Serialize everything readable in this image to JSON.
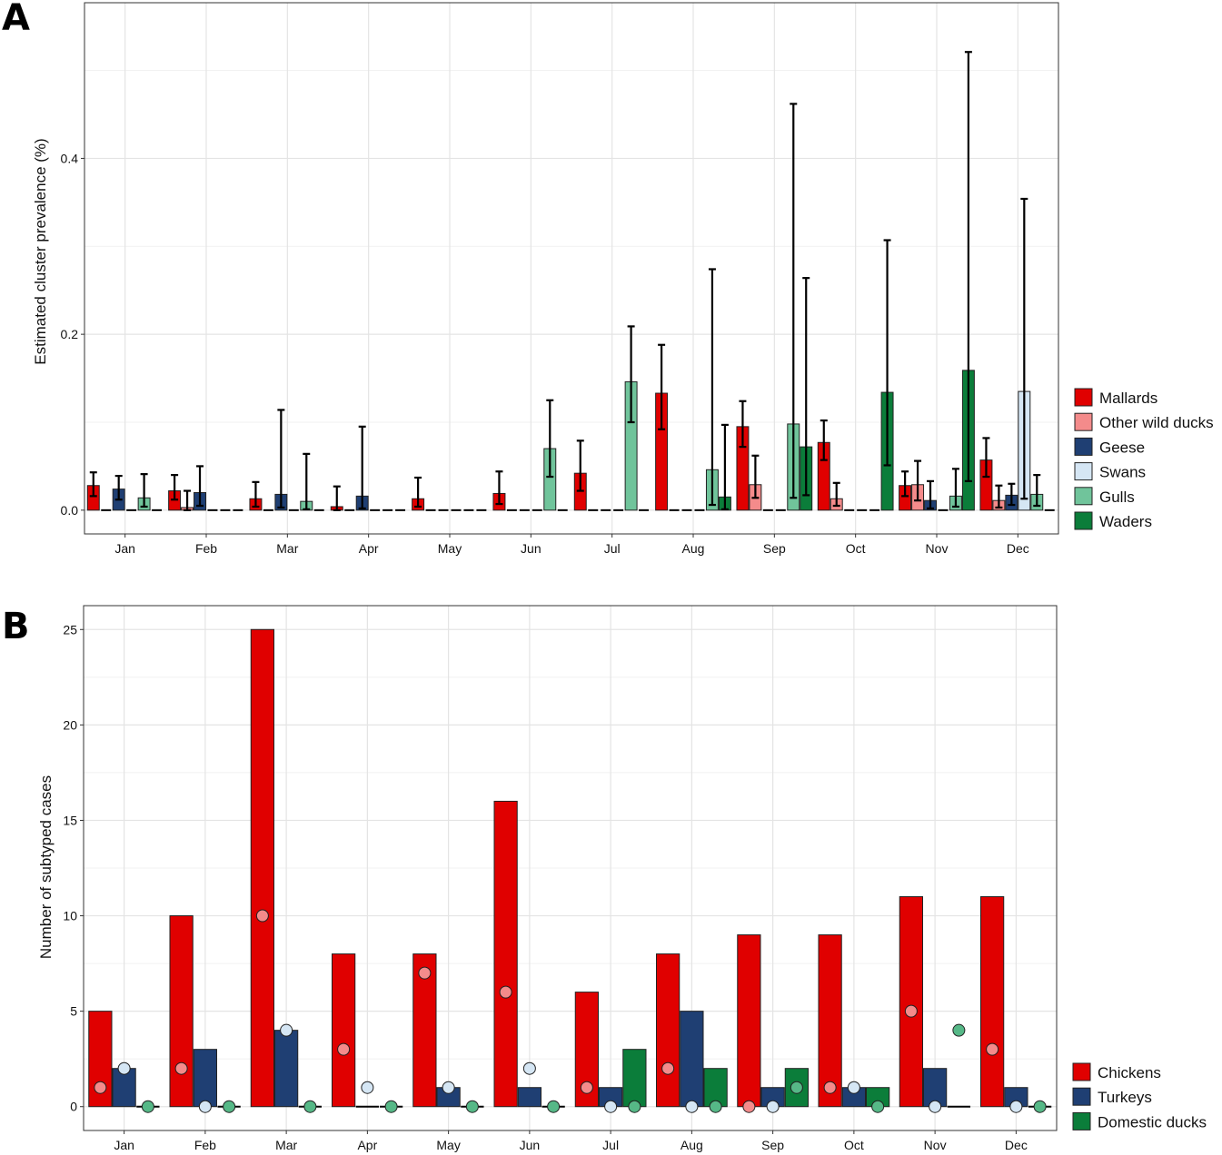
{
  "colors": {
    "mallards": "#e00000",
    "other_wild_ducks": "#f48b8b",
    "geese": "#1f3f73",
    "swans": "#d5e6f4",
    "gulls": "#70c49b",
    "waders": "#0b7d3a",
    "chickens": "#e00000",
    "turkeys": "#1f3f73",
    "domestic_ducks": "#0b7d3a",
    "point_chickens": "#f48b8b",
    "point_turkeys": "#d5e6f4",
    "point_ducks": "#56b887"
  },
  "panels": {
    "a": "A",
    "b": "B"
  },
  "chart_data": [
    {
      "type": "bar",
      "panel": "A",
      "title": "",
      "xlabel": "",
      "ylabel": "Estimated cluster prevalence (%)",
      "ylim": [
        -0.027,
        0.577
      ],
      "yticks": [
        0.0,
        0.2,
        0.4
      ],
      "ytick_labels": [
        "0.0",
        "0.2",
        "0.4"
      ],
      "categories": [
        "Jan",
        "Feb",
        "Mar",
        "Apr",
        "May",
        "Jun",
        "Jul",
        "Aug",
        "Sep",
        "Oct",
        "Nov",
        "Dec"
      ],
      "legend_position": "right",
      "series": [
        {
          "name": "Mallards",
          "color": "mallards",
          "values": [
            0.028,
            0.022,
            0.013,
            0.004,
            0.013,
            0.019,
            0.042,
            0.133,
            0.095,
            0.077,
            0.028,
            0.057
          ],
          "lower": [
            0.016,
            0.012,
            0.004,
            0.0,
            0.004,
            0.007,
            0.022,
            0.092,
            0.072,
            0.057,
            0.016,
            0.038
          ],
          "upper": [
            0.043,
            0.04,
            0.032,
            0.027,
            0.037,
            0.044,
            0.079,
            0.188,
            0.124,
            0.102,
            0.044,
            0.082
          ]
        },
        {
          "name": "Other wild ducks",
          "color": "other_wild_ducks",
          "values": [
            0.0,
            0.003,
            0.0,
            0.0,
            0.0,
            0.0,
            0.0,
            0.0,
            0.029,
            0.013,
            0.029,
            0.011
          ],
          "lower": [
            0.0,
            0.0,
            0.0,
            0.0,
            0.0,
            0.0,
            0.0,
            0.0,
            0.014,
            0.005,
            0.011,
            0.003
          ],
          "upper": [
            0.0,
            0.022,
            0.0,
            0.0,
            0.0,
            0.0,
            0.0,
            0.0,
            0.062,
            0.031,
            0.056,
            0.028
          ]
        },
        {
          "name": "Geese",
          "color": "geese",
          "values": [
            0.024,
            0.02,
            0.018,
            0.016,
            0.0,
            0.0,
            0.0,
            0.0,
            0.0,
            0.0,
            0.011,
            0.017
          ],
          "lower": [
            0.012,
            0.005,
            0.003,
            0.002,
            0.0,
            0.0,
            0.0,
            0.0,
            0.0,
            0.0,
            0.002,
            0.006
          ],
          "upper": [
            0.039,
            0.05,
            0.114,
            0.095,
            0.0,
            0.0,
            0.0,
            0.0,
            0.0,
            0.0,
            0.033,
            0.03
          ]
        },
        {
          "name": "Swans",
          "color": "swans",
          "values": [
            0.0,
            0.0,
            0.0,
            0.0,
            0.0,
            0.0,
            0.0,
            0.0,
            0.0,
            0.0,
            0.0,
            0.135
          ],
          "lower": [
            0.0,
            0.0,
            0.0,
            0.0,
            0.0,
            0.0,
            0.0,
            0.0,
            0.0,
            0.0,
            0.0,
            0.013
          ],
          "upper": [
            0.0,
            0.0,
            0.0,
            0.0,
            0.0,
            0.0,
            0.0,
            0.0,
            0.0,
            0.0,
            0.0,
            0.354
          ]
        },
        {
          "name": "Gulls",
          "color": "gulls",
          "values": [
            0.014,
            0.0,
            0.01,
            0.0,
            0.0,
            0.07,
            0.146,
            0.046,
            0.098,
            0.0,
            0.016,
            0.018
          ],
          "lower": [
            0.004,
            0.0,
            0.001,
            0.0,
            0.0,
            0.038,
            0.1,
            0.006,
            0.014,
            0.0,
            0.004,
            0.005
          ],
          "upper": [
            0.041,
            0.0,
            0.064,
            0.0,
            0.0,
            0.125,
            0.209,
            0.274,
            0.462,
            0.0,
            0.047,
            0.04
          ]
        },
        {
          "name": "Waders",
          "color": "waders",
          "values": [
            0.0,
            0.0,
            0.0,
            0.0,
            0.0,
            0.0,
            0.0,
            0.015,
            0.072,
            0.134,
            0.159,
            0.0
          ],
          "lower": [
            0.0,
            0.0,
            0.0,
            0.0,
            0.0,
            0.0,
            0.0,
            0.001,
            0.017,
            0.051,
            0.033,
            0.0
          ],
          "upper": [
            0.0,
            0.0,
            0.0,
            0.0,
            0.0,
            0.0,
            0.0,
            0.097,
            0.264,
            0.307,
            0.521,
            0.0
          ]
        }
      ]
    },
    {
      "type": "bar",
      "panel": "B",
      "title": "",
      "xlabel": "",
      "ylabel": "Number of subtyped cases",
      "ylim": [
        -1.25,
        26.25
      ],
      "yticks": [
        0,
        5,
        10,
        15,
        20,
        25
      ],
      "ytick_labels": [
        "0",
        "5",
        "10",
        "15",
        "20",
        "25"
      ],
      "categories": [
        "Jan",
        "Feb",
        "Mar",
        "Apr",
        "May",
        "Jun",
        "Jul",
        "Aug",
        "Sep",
        "Oct",
        "Nov",
        "Dec"
      ],
      "legend_position": "right",
      "series": [
        {
          "name": "Chickens",
          "color": "chickens",
          "point_color": "point_chickens",
          "values": [
            5,
            10,
            25,
            8,
            8,
            16,
            6,
            8,
            9,
            9,
            11,
            11
          ],
          "points": [
            1,
            2,
            10,
            3,
            7,
            6,
            1,
            2,
            0,
            1,
            5,
            3
          ]
        },
        {
          "name": "Turkeys",
          "color": "turkeys",
          "point_color": "point_turkeys",
          "values": [
            2,
            3,
            4,
            0,
            1,
            1,
            1,
            5,
            1,
            1,
            2,
            1
          ],
          "points": [
            2,
            0,
            4,
            1,
            1,
            2,
            0,
            0,
            0,
            1,
            0,
            0
          ]
        },
        {
          "name": "Domestic ducks",
          "color": "domestic_ducks",
          "point_color": "point_ducks",
          "values": [
            0,
            0,
            0,
            0,
            0,
            0,
            3,
            2,
            2,
            1,
            0,
            0
          ],
          "points": [
            0,
            0,
            0,
            0,
            0,
            0,
            0,
            0,
            1,
            0,
            4,
            0
          ]
        }
      ]
    }
  ]
}
